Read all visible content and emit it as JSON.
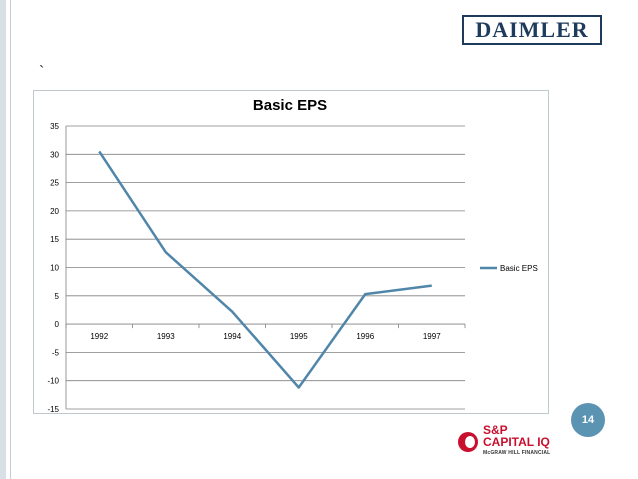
{
  "slide": {
    "stray_mark": "`",
    "page_number": "14"
  },
  "logos": {
    "daimler": "DAIMLER",
    "sp_line1": "S&P",
    "sp_line2": "CAPITAL IQ",
    "sp_line3": "McGRAW HILL FINANCIAL"
  },
  "chart_data": {
    "type": "line",
    "title": "Basic EPS",
    "categories": [
      "1992",
      "1993",
      "1994",
      "1995",
      "1996",
      "1997"
    ],
    "series": [
      {
        "name": "Basic EPS",
        "values": [
          30.5,
          12.7,
          2.2,
          -11.2,
          5.3,
          6.8
        ],
        "color": "#4f86a9"
      }
    ],
    "ylim": [
      -15,
      35
    ],
    "yticks": [
      35,
      30,
      25,
      20,
      15,
      10,
      5,
      0,
      -5,
      -10,
      -15
    ],
    "grid": true,
    "legend": "right",
    "xlabel": "",
    "ylabel": ""
  },
  "colors": {
    "line": "#4f86a9",
    "badge": "#5b93b3",
    "grid": "#808080"
  }
}
